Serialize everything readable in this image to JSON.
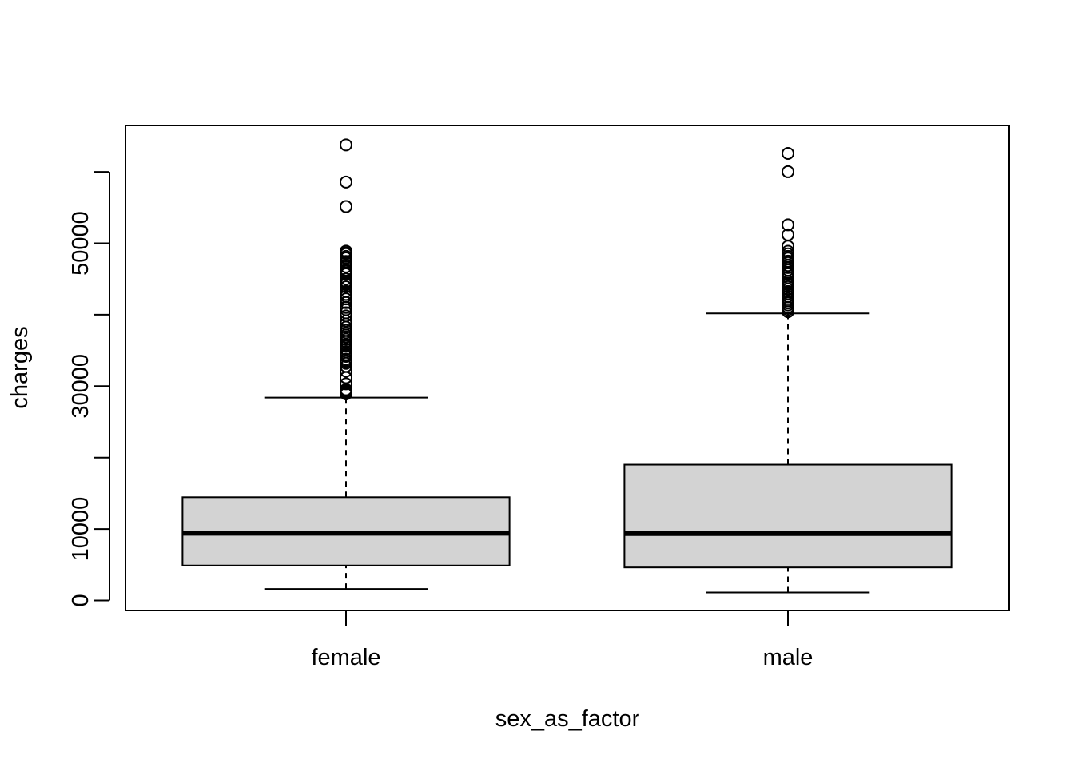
{
  "chart_data": {
    "type": "boxplot",
    "title": "",
    "xlabel": "sex_as_factor",
    "ylabel": "charges",
    "categories": [
      "female",
      "male"
    ],
    "ylim": [
      -1400,
      66500
    ],
    "yticks": [
      0,
      10000,
      20000,
      30000,
      40000,
      50000,
      60000
    ],
    "ytick_labels": [
      "0",
      "10000",
      "",
      "30000",
      "",
      "50000",
      ""
    ],
    "grid": false,
    "box_fill": "#d3d3d3",
    "boxes": [
      {
        "name": "female",
        "whisker_low": 1610,
        "q1": 4890,
        "median": 9410,
        "q3": 14450,
        "whisker_high": 28400,
        "outliers": [
          63770,
          58570,
          55140,
          48900,
          48670,
          48520,
          48170,
          47930,
          47460,
          47290,
          46720,
          46260,
          46130,
          45860,
          45700,
          45010,
          44640,
          44400,
          44260,
          43900,
          43250,
          42860,
          42560,
          42210,
          41700,
          41030,
          40720,
          40270,
          39840,
          39130,
          38710,
          38260,
          37830,
          37490,
          37150,
          36880,
          36580,
          36220,
          35850,
          35590,
          35160,
          34800,
          34440,
          34170,
          33750,
          33480,
          33200,
          32790,
          32100,
          31200,
          30330,
          29520,
          29330,
          29200,
          29050,
          28920
        ]
      },
      {
        "name": "male",
        "whisker_low": 1120,
        "q1": 4620,
        "median": 9370,
        "q3": 19010,
        "whisker_high": 40180,
        "outliers": [
          62590,
          60020,
          52590,
          51190,
          49580,
          48880,
          48520,
          48170,
          47900,
          47500,
          47270,
          46890,
          46600,
          46250,
          45870,
          45690,
          45200,
          44640,
          44400,
          44200,
          43920,
          43580,
          43250,
          42950,
          42560,
          42240,
          41950,
          41660,
          41370,
          41030,
          40720,
          40420
        ]
      }
    ]
  }
}
